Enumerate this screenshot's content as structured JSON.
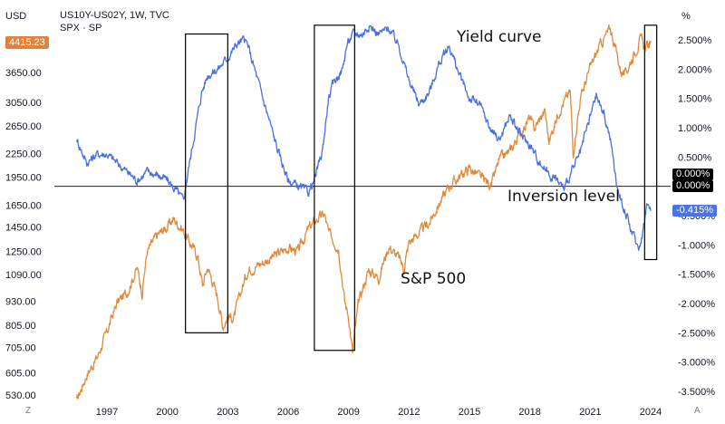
{
  "header": {
    "left_unit": "USD",
    "right_unit": "%",
    "symbol_line": "US10Y-US02Y, 1W, TVC",
    "symbol_line2": "SPX · SP",
    "spx_last": "4415.23",
    "zero_label_a": "0.000%",
    "zero_label_b": "0.000%",
    "yc_last": "-0.415%",
    "corner_left": "Z",
    "corner_right": "A"
  },
  "colors": {
    "spx": "#e08a3c",
    "yield": "#4a6fe0",
    "spx_tag": "#e0823d",
    "yield_tag": "#4a73e8"
  },
  "chart_data": {
    "type": "line",
    "title": "",
    "x_ticks": [
      "1997",
      "2000",
      "2003",
      "2006",
      "2009",
      "2012",
      "2015",
      "2018",
      "2021",
      "2024"
    ],
    "left_axis": {
      "unit": "USD",
      "scale": "log",
      "ticks": [
        530,
        605,
        705,
        805,
        930,
        1090,
        1250,
        1450,
        1650,
        1950,
        2250,
        2650,
        3050,
        3650
      ],
      "tick_labels": [
        "530.00",
        "605.00",
        "705.00",
        "805.00",
        "930.00",
        "1090.00",
        "1250.00",
        "1450.00",
        "1650.00",
        "1950.00",
        "2250.00",
        "2650.00",
        "3050.00",
        "3650.00"
      ]
    },
    "right_axis": {
      "unit": "%",
      "ticks": [
        2.5,
        2.0,
        1.5,
        1.0,
        0.5,
        -0.5,
        -1.0,
        -1.5,
        -2.0,
        -2.5,
        -3.0,
        -3.5
      ],
      "tick_labels": [
        "2.500%",
        "2.000%",
        "1.500%",
        "1.000%",
        "0.500%",
        "-0.500%",
        "-1.000%",
        "-1.500%",
        "-2.000%",
        "-2.500%",
        "-3.000%",
        "-3.500%"
      ]
    },
    "series": [
      {
        "name": "S&P 500",
        "axis": "left",
        "points": [
          [
            1995.5,
            510
          ],
          [
            1996.0,
            600
          ],
          [
            1996.5,
            660
          ],
          [
            1997.0,
            770
          ],
          [
            1997.5,
            920
          ],
          [
            1998.0,
            980
          ],
          [
            1998.5,
            1130
          ],
          [
            1998.75,
            980
          ],
          [
            1999.0,
            1250
          ],
          [
            1999.5,
            1380
          ],
          [
            2000.0,
            1450
          ],
          [
            2000.3,
            1520
          ],
          [
            2000.7,
            1440
          ],
          [
            2001.0,
            1350
          ],
          [
            2001.5,
            1220
          ],
          [
            2001.75,
            1020
          ],
          [
            2002.0,
            1140
          ],
          [
            2002.5,
            950
          ],
          [
            2002.75,
            800
          ],
          [
            2003.0,
            850
          ],
          [
            2003.3,
            840
          ],
          [
            2003.7,
            1000
          ],
          [
            2004.0,
            1120
          ],
          [
            2005.0,
            1190
          ],
          [
            2006.0,
            1280
          ],
          [
            2006.5,
            1250
          ],
          [
            2007.0,
            1430
          ],
          [
            2007.5,
            1530
          ],
          [
            2007.8,
            1560
          ],
          [
            2008.0,
            1400
          ],
          [
            2008.5,
            1280
          ],
          [
            2008.8,
            930
          ],
          [
            2009.0,
            850
          ],
          [
            2009.2,
            680
          ],
          [
            2009.5,
            920
          ],
          [
            2010.0,
            1120
          ],
          [
            2010.5,
            1070
          ],
          [
            2011.0,
            1290
          ],
          [
            2011.5,
            1200
          ],
          [
            2011.75,
            1130
          ],
          [
            2012.0,
            1320
          ],
          [
            2013.0,
            1480
          ],
          [
            2014.0,
            1850
          ],
          [
            2015.0,
            2060
          ],
          [
            2015.7,
            1920
          ],
          [
            2016.1,
            1860
          ],
          [
            2016.5,
            2170
          ],
          [
            2017.0,
            2270
          ],
          [
            2018.0,
            2780
          ],
          [
            2018.2,
            2600
          ],
          [
            2018.75,
            2900
          ],
          [
            2018.95,
            2400
          ],
          [
            2019.5,
            2950
          ],
          [
            2020.0,
            3250
          ],
          [
            2020.15,
            2240
          ],
          [
            2020.5,
            3100
          ],
          [
            2021.0,
            3750
          ],
          [
            2021.5,
            4300
          ],
          [
            2022.0,
            4750
          ],
          [
            2022.5,
            3700
          ],
          [
            2022.75,
            3600
          ],
          [
            2023.0,
            3900
          ],
          [
            2023.5,
            4450
          ],
          [
            2023.75,
            4200
          ],
          [
            2024.0,
            4400
          ]
        ]
      },
      {
        "name": "Yield curve",
        "axis": "right",
        "points": [
          [
            1995.5,
            0.8
          ],
          [
            1995.75,
            0.6
          ],
          [
            1996.0,
            0.4
          ],
          [
            1996.5,
            0.55
          ],
          [
            1997.0,
            0.55
          ],
          [
            1997.5,
            0.4
          ],
          [
            1998.0,
            0.25
          ],
          [
            1998.5,
            0.1
          ],
          [
            1999.0,
            0.25
          ],
          [
            1999.5,
            0.2
          ],
          [
            2000.0,
            0.1
          ],
          [
            2000.5,
            -0.1
          ],
          [
            2000.8,
            -0.25
          ],
          [
            2001.0,
            0.2
          ],
          [
            2001.3,
            0.8
          ],
          [
            2001.7,
            1.6
          ],
          [
            2002.0,
            1.9
          ],
          [
            2002.5,
            2.0
          ],
          [
            2002.75,
            2.1
          ],
          [
            2003.0,
            2.2
          ],
          [
            2003.5,
            2.45
          ],
          [
            2003.8,
            2.5
          ],
          [
            2004.0,
            2.4
          ],
          [
            2004.5,
            1.8
          ],
          [
            2005.0,
            1.2
          ],
          [
            2005.5,
            0.6
          ],
          [
            2006.0,
            0.1
          ],
          [
            2006.5,
            0.0
          ],
          [
            2007.0,
            -0.1
          ],
          [
            2007.3,
            0.1
          ],
          [
            2007.7,
            0.6
          ],
          [
            2008.0,
            1.5
          ],
          [
            2008.3,
            1.8
          ],
          [
            2008.7,
            2.0
          ],
          [
            2008.9,
            2.4
          ],
          [
            2009.2,
            2.6
          ],
          [
            2009.7,
            2.6
          ],
          [
            2010.0,
            2.75
          ],
          [
            2010.5,
            2.6
          ],
          [
            2011.0,
            2.7
          ],
          [
            2011.5,
            2.4
          ],
          [
            2012.0,
            1.8
          ],
          [
            2012.5,
            1.4
          ],
          [
            2013.0,
            1.6
          ],
          [
            2013.5,
            2.1
          ],
          [
            2014.0,
            2.4
          ],
          [
            2014.5,
            1.9
          ],
          [
            2015.0,
            1.5
          ],
          [
            2015.5,
            1.4
          ],
          [
            2016.0,
            1.0
          ],
          [
            2016.5,
            0.8
          ],
          [
            2017.0,
            1.2
          ],
          [
            2017.5,
            0.9
          ],
          [
            2018.0,
            0.7
          ],
          [
            2018.5,
            0.4
          ],
          [
            2019.0,
            0.2
          ],
          [
            2019.5,
            0.05
          ],
          [
            2019.7,
            -0.05
          ],
          [
            2020.0,
            0.2
          ],
          [
            2020.5,
            0.55
          ],
          [
            2021.0,
            1.2
          ],
          [
            2021.3,
            1.55
          ],
          [
            2021.7,
            1.2
          ],
          [
            2022.0,
            0.8
          ],
          [
            2022.3,
            0.05
          ],
          [
            2022.6,
            -0.3
          ],
          [
            2022.8,
            -0.5
          ],
          [
            2023.0,
            -0.7
          ],
          [
            2023.2,
            -0.9
          ],
          [
            2023.4,
            -1.05
          ],
          [
            2023.6,
            -0.8
          ],
          [
            2023.8,
            -0.3
          ],
          [
            2024.0,
            -0.42
          ]
        ]
      }
    ],
    "reference_line": {
      "value": 0.0,
      "axis": "right",
      "label": "Inversion level"
    },
    "highlight_boxes": [
      {
        "x_start": 2000.9,
        "x_end": 2003.0,
        "y_top": 2.6,
        "y_bottom": -2.5
      },
      {
        "x_start": 2007.3,
        "x_end": 2009.3,
        "y_top": 2.75,
        "y_bottom": -2.8
      },
      {
        "x_start": 2023.7,
        "x_end": 2024.3,
        "y_top": 2.75,
        "y_bottom": -1.25
      }
    ],
    "annotations": [
      {
        "text": "Yield curve",
        "near": "yield curve peak 2014"
      },
      {
        "text": "Inversion level",
        "near": "zero line, right"
      },
      {
        "text": "S&P 500",
        "near": "S&P 500 line 2012"
      }
    ],
    "grid": false,
    "legend": "none"
  }
}
